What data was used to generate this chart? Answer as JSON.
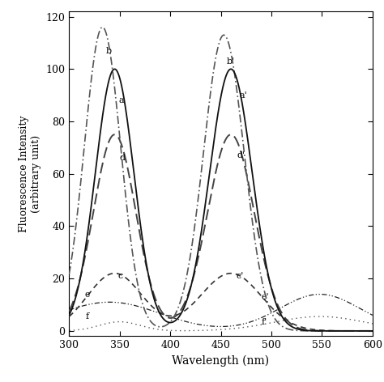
{
  "xlabel": "Wavelength (nm)",
  "ylabel": "Fluorescence Intensity\n(arbitrary unit)",
  "xlim": [
    300,
    600
  ],
  "ylim": [
    -2,
    122
  ],
  "yticks": [
    0,
    20,
    40,
    60,
    80,
    100,
    120
  ],
  "xticks": [
    300,
    350,
    400,
    450,
    500,
    550,
    600
  ],
  "background_color": "#ffffff",
  "text_color": "#000000",
  "curves": [
    {
      "label": "a",
      "label2": "a'",
      "style": "solid",
      "color": "#111111",
      "linewidth": 1.3,
      "peak1_x": 345,
      "peak1_y": 100,
      "sigma1": 19,
      "peak2_x": 460,
      "peak2_y": 100,
      "sigma2": 21,
      "ann1_x": 349,
      "ann1_y": 88,
      "ann2_x": 468,
      "ann2_y": 90
    },
    {
      "label": "b",
      "label2": "b'",
      "style": "dashdot_b",
      "color": "#555555",
      "linewidth": 1.2,
      "peak1_x": 333,
      "peak1_y": 116,
      "sigma1": 18,
      "peak2_x": 453,
      "peak2_y": 113,
      "sigma2": 20,
      "ann1_x": 336,
      "ann1_y": 107,
      "ann2_x": 456,
      "ann2_y": 103
    },
    {
      "label": "d",
      "label2": "d'",
      "style": "dashed_d",
      "color": "#444444",
      "linewidth": 1.4,
      "peak1_x": 345,
      "peak1_y": 75,
      "sigma1": 21,
      "peak2_x": 460,
      "peak2_y": 75,
      "sigma2": 23,
      "ann1_x": 350,
      "ann1_y": 66,
      "ann2_x": 466,
      "ann2_y": 67
    },
    {
      "label": "c",
      "label2": "c'",
      "style": "dashed_c",
      "color": "#333333",
      "linewidth": 1.2,
      "peak1_x": 345,
      "peak1_y": 22,
      "sigma1": 27,
      "peak2_x": 460,
      "peak2_y": 22,
      "sigma2": 30,
      "ann1_x": 348,
      "ann1_y": 21,
      "ann2_x": 465,
      "ann2_y": 21
    },
    {
      "label": "e",
      "label2": "e'",
      "style": "dashdotdot",
      "color": "#222222",
      "linewidth": 0.9,
      "peak1_x": 340,
      "peak1_y": 11,
      "sigma1": 50,
      "peak2_x": 548,
      "peak2_y": 14,
      "sigma2": 40,
      "ann1_x": 315,
      "ann1_y": 14,
      "ann2_x": 490,
      "ann2_y": 13
    },
    {
      "label": "f",
      "label2": "f'",
      "style": "dotted",
      "color": "#555555",
      "linewidth": 1.0,
      "peak1_x": 350,
      "peak1_y": 3.5,
      "sigma1": 20,
      "peak2_x": 548,
      "peak2_y": 5.5,
      "sigma2": 45,
      "ann1_x": 316,
      "ann1_y": 5.5,
      "ann2_x": 490,
      "ann2_y": 3.5
    }
  ]
}
